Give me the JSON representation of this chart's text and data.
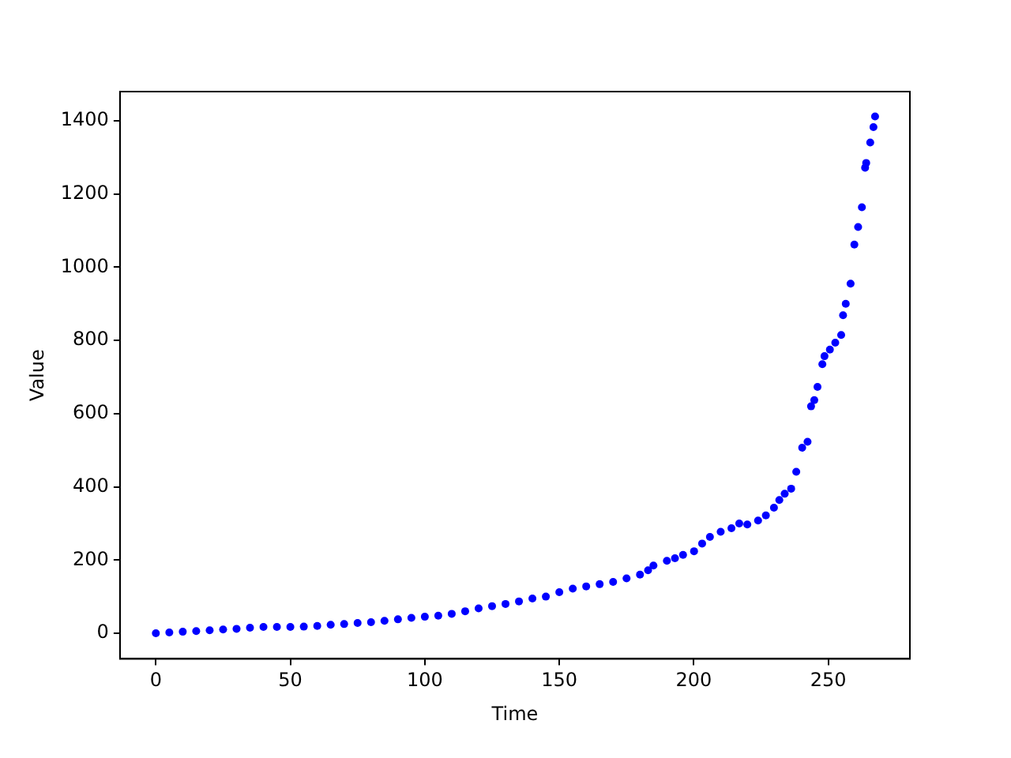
{
  "chart_data": {
    "type": "scatter",
    "xlabel": "Time",
    "ylabel": "Value",
    "xlim": [
      -13.35,
      280.35
    ],
    "ylim": [
      -70,
      1480
    ],
    "xticks": [
      0,
      50,
      100,
      150,
      200,
      250
    ],
    "yticks": [
      0,
      200,
      400,
      600,
      800,
      1000,
      1200,
      1400
    ],
    "grid": false,
    "legend": false,
    "marker": "circle",
    "x": [
      0,
      5,
      10,
      15,
      20,
      25,
      30,
      35,
      40,
      45,
      50,
      55,
      60,
      65,
      70,
      75,
      80,
      85,
      90,
      95,
      100,
      105,
      110,
      115,
      120,
      125,
      130,
      135,
      140,
      145,
      150,
      155,
      160,
      165,
      170,
      175,
      180,
      183,
      185,
      190,
      193,
      196,
      200.1,
      203.1,
      206,
      210,
      214,
      216.9,
      219.9,
      223.9,
      226.8,
      229.8,
      231.8,
      233.8,
      236.2,
      238.1,
      240.3,
      242.3,
      243.6,
      244.8,
      246,
      247.8,
      248.6,
      250.6,
      252.6,
      254.8,
      255.5,
      256.5,
      258.3,
      259.7,
      261.1,
      262.5,
      263.7,
      264.1,
      265.6,
      266.8,
      267.4
    ],
    "series": [
      {
        "color": "#0000ff",
        "values": [
          0,
          2,
          4,
          6,
          8,
          10,
          12,
          15,
          17,
          17,
          17,
          18,
          20,
          23,
          25,
          28,
          30,
          34,
          38,
          42,
          45,
          48,
          53,
          60,
          68,
          74,
          80,
          87,
          95,
          100,
          112,
          122,
          128,
          134,
          140,
          150,
          160,
          172,
          185,
          198,
          205,
          214,
          224,
          245,
          263,
          277,
          287,
          300,
          297,
          308,
          322,
          343,
          364,
          381,
          395,
          441,
          507,
          523,
          620,
          637,
          673,
          735,
          757,
          775,
          794,
          815,
          869,
          900,
          955,
          1062,
          1110,
          1164,
          1272,
          1285,
          1341,
          1383,
          1412
        ]
      }
    ]
  }
}
